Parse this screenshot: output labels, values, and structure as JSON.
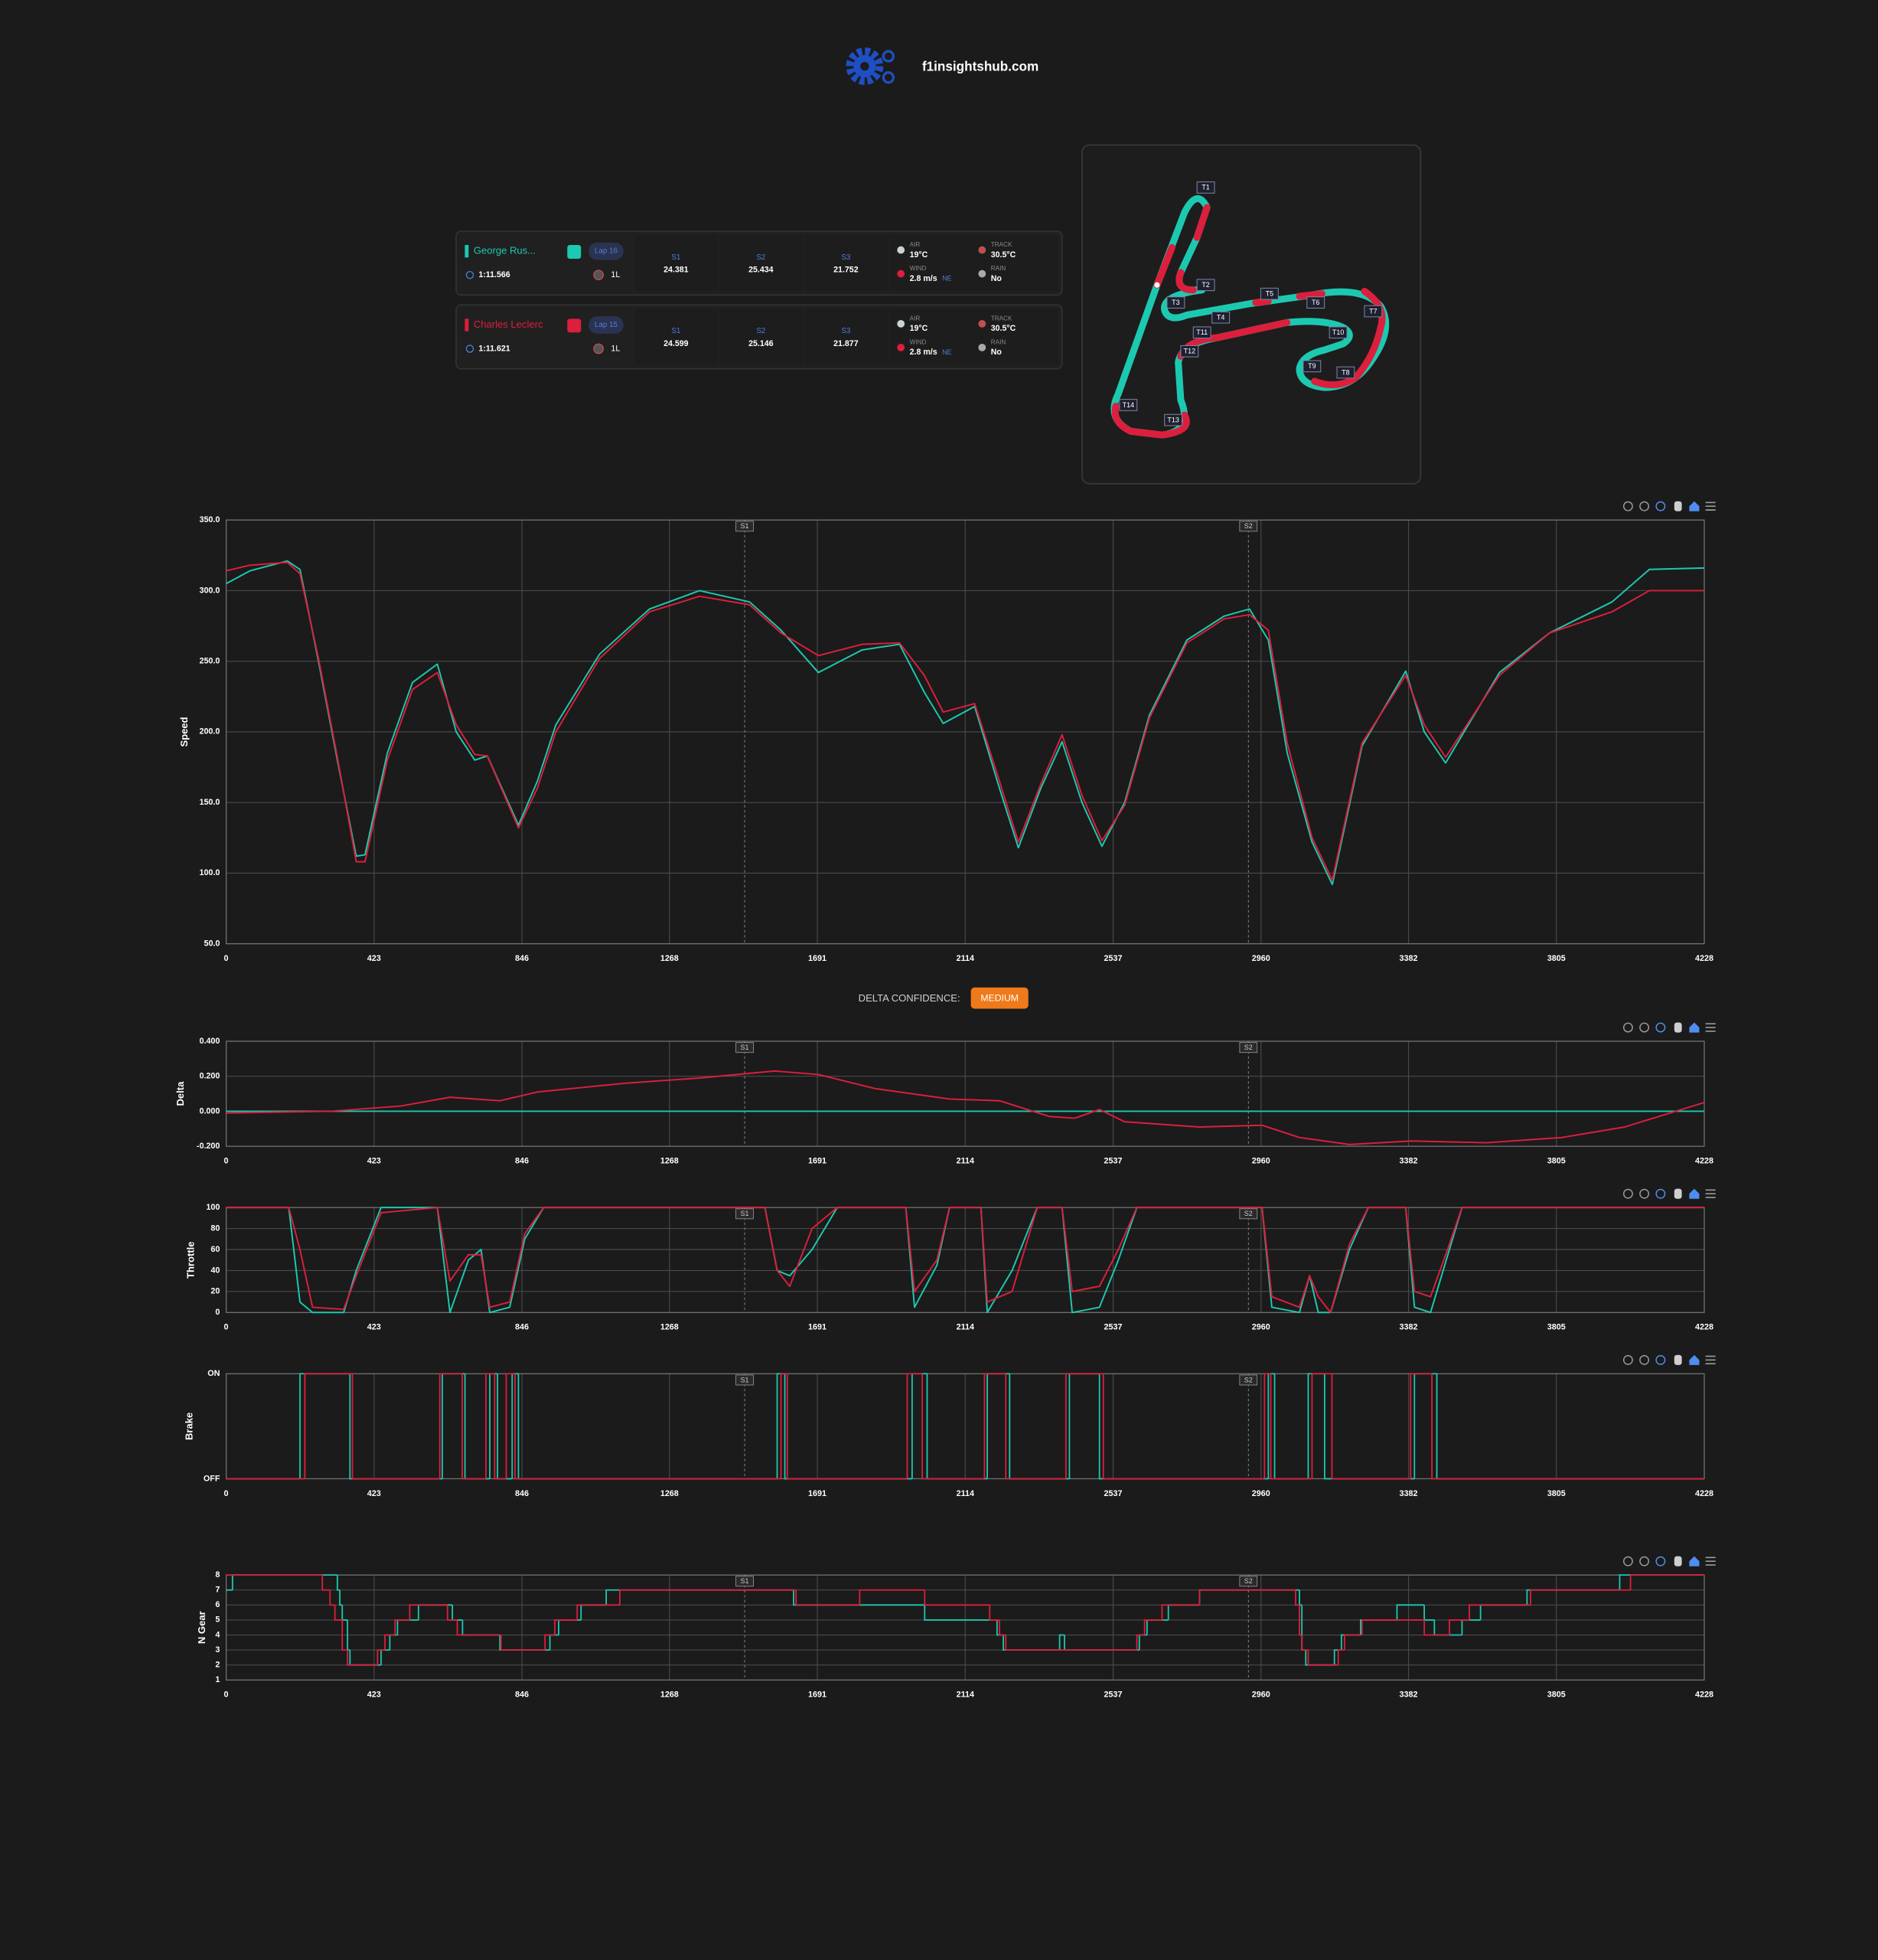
{
  "header": {
    "site": "f1insightshub.com"
  },
  "drivers": [
    {
      "name": "George Rus...",
      "color": "#1cc9b0",
      "lap": "Lap 16",
      "lap_time": "1:11.566",
      "tyre": "1L",
      "sectors": [
        {
          "label": "S1",
          "time": 24.381
        },
        {
          "label": "S2",
          "time": 25.434
        },
        {
          "label": "S3",
          "time": 21.752
        }
      ],
      "weather": [
        {
          "label": "AIR",
          "value": "19°C"
        },
        {
          "label": "TRACK",
          "value": "30.5°C"
        },
        {
          "label": "WIND",
          "value": "2.8 m/s",
          "direction": "NE"
        },
        {
          "label": "RAIN",
          "value": "No"
        }
      ]
    },
    {
      "name": "Charles Leclerc",
      "color": "#dc1f3c",
      "lap": "Lap 15",
      "lap_time": "1:11.621",
      "tyre": "1L",
      "sectors": [
        {
          "label": "S1",
          "time": 24.599
        },
        {
          "label": "S2",
          "time": 25.146
        },
        {
          "label": "S3",
          "time": 21.877
        }
      ],
      "weather": [
        {
          "label": "AIR",
          "value": "19°C"
        },
        {
          "label": "TRACK",
          "value": "30.5°C"
        },
        {
          "label": "WIND",
          "value": "2.8 m/s",
          "direction": "NE"
        },
        {
          "label": "RAIN",
          "value": "No"
        }
      ]
    }
  ],
  "track_map": {
    "corners": [
      "T1",
      "T2",
      "T3",
      "T4",
      "T5",
      "T6",
      "T7",
      "T8",
      "T9",
      "T10",
      "T11",
      "T12",
      "T13",
      "T14"
    ]
  },
  "delta_confidence": {
    "label": "DELTA CONFIDENCE:",
    "level": "MEDIUM"
  },
  "chart_data": [
    {
      "type": "line",
      "ylabel": "Speed",
      "x": [
        0,
        68,
        175,
        211,
        264,
        318,
        372,
        397,
        461,
        533,
        604,
        658,
        711,
        747,
        836,
        890,
        943,
        1068,
        1211,
        1354,
        1497,
        1587,
        1694,
        1819,
        1926,
        1997,
        2051,
        2141,
        2212,
        2266,
        2330,
        2391,
        2448,
        2505,
        2570,
        2641,
        2748,
        2855,
        2927,
        2981,
        3035,
        3106,
        3164,
        3249,
        3374,
        3427,
        3488,
        3642,
        3785,
        3964,
        4071,
        4228
      ],
      "series": [
        {
          "color": "#1cc9b0",
          "values": [
            305,
            314,
            321,
            315,
            250,
            180,
            112,
            113,
            185,
            235,
            248,
            200,
            180,
            183,
            134,
            165,
            205,
            255,
            287,
            300,
            292,
            272,
            242,
            258,
            262,
            228,
            206,
            218,
            160,
            118,
            160,
            193,
            150,
            119,
            150,
            212,
            265,
            282,
            287,
            265,
            185,
            122,
            92,
            190,
            243,
            200,
            178,
            242,
            270,
            292,
            315,
            316
          ]
        },
        {
          "color": "#dc1f3c",
          "values": [
            314,
            318,
            320,
            312,
            252,
            182,
            108,
            108,
            180,
            230,
            242,
            205,
            184,
            183,
            132,
            160,
            200,
            252,
            285,
            296,
            290,
            270,
            254,
            262,
            263,
            240,
            214,
            220,
            165,
            122,
            163,
            198,
            155,
            123,
            148,
            210,
            263,
            280,
            283,
            272,
            192,
            125,
            95,
            192,
            240,
            205,
            182,
            240,
            270,
            285,
            300,
            300
          ]
        }
      ],
      "xlim": [
        0,
        4228
      ],
      "ylim": [
        50,
        350
      ],
      "xticks": [
        0,
        423,
        846,
        1268,
        1691,
        2114,
        2537,
        2960,
        3382,
        3805,
        4228
      ],
      "yticks": [
        {
          "value": 50,
          "label": "50.0"
        },
        {
          "value": 100,
          "label": "100.0"
        },
        {
          "value": 150,
          "label": "150.0"
        },
        {
          "value": 200,
          "label": "200.0"
        },
        {
          "value": 250,
          "label": "250.0"
        },
        {
          "value": 300,
          "label": "300.0"
        },
        {
          "value": 350,
          "label": "350.0"
        }
      ],
      "grid": true,
      "sectors": [
        {
          "label": "S1",
          "x": 1483
        },
        {
          "label": "S2",
          "x": 2924
        }
      ]
    },
    {
      "type": "line",
      "ylabel": "Delta",
      "x": [
        0,
        300,
        500,
        640,
        783,
        890,
        1140,
        1354,
        1568,
        1694,
        1855,
        2069,
        2212,
        2355,
        2427,
        2498,
        2570,
        2784,
        2963,
        3070,
        3213,
        3391,
        3606,
        3821,
        4000,
        4228
      ],
      "series": [
        {
          "color": "#1cc9b0",
          "values": [
            0,
            0,
            0,
            0,
            0,
            0,
            0,
            0,
            0,
            0,
            0,
            0,
            0,
            0,
            0,
            0,
            0,
            0,
            0,
            0,
            0,
            0,
            0,
            0,
            0,
            0
          ]
        },
        {
          "color": "#dc1f3c",
          "values": [
            -0.01,
            0,
            0.03,
            0.08,
            0.06,
            0.11,
            0.16,
            0.19,
            0.23,
            0.21,
            0.13,
            0.07,
            0.06,
            -0.03,
            -0.04,
            0.01,
            -0.06,
            -0.09,
            -0.08,
            -0.15,
            -0.19,
            -0.17,
            -0.18,
            -0.15,
            -0.09,
            0.05
          ]
        }
      ],
      "xlim": [
        0,
        4228
      ],
      "ylim": [
        -0.2,
        0.4
      ],
      "xticks": [
        0,
        423,
        846,
        1268,
        1691,
        2114,
        2537,
        2960,
        3382,
        3805,
        4228
      ],
      "yticks": [
        {
          "value": -0.2,
          "label": "-0.200"
        },
        {
          "value": 0,
          "label": "0.000"
        },
        {
          "value": 0.2,
          "label": "0.200"
        },
        {
          "value": 0.4,
          "label": "0.400"
        }
      ],
      "grid": true,
      "sectors": [
        {
          "label": "S1",
          "x": 1483
        },
        {
          "label": "S2",
          "x": 2924
        }
      ]
    },
    {
      "type": "line",
      "ylabel": "Throttle",
      "x": [
        0,
        179,
        211,
        247,
        336,
        372,
        443,
        604,
        640,
        693,
        729,
        754,
        811,
        854,
        908,
        1541,
        1576,
        1612,
        1676,
        1748,
        1944,
        1969,
        2033,
        2069,
        2159,
        2177,
        2248,
        2320,
        2391,
        2420,
        2498,
        2552,
        2605,
        2963,
        2991,
        3070,
        3099,
        3124,
        3159,
        3213,
        3267,
        3374,
        3399,
        3445,
        3499,
        3535,
        4228
      ],
      "series": [
        {
          "color": "#1cc9b0",
          "values": [
            100,
            100,
            10,
            0,
            0,
            40,
            100,
            100,
            0,
            50,
            60,
            0,
            5,
            70,
            100,
            100,
            40,
            35,
            60,
            100,
            100,
            5,
            45,
            100,
            100,
            0,
            40,
            100,
            100,
            0,
            5,
            50,
            100,
            100,
            5,
            0,
            35,
            0,
            0,
            60,
            100,
            100,
            5,
            0,
            60,
            100,
            100
          ]
        },
        {
          "color": "#dc1f3c",
          "values": [
            100,
            100,
            60,
            5,
            3,
            35,
            95,
            100,
            30,
            55,
            55,
            5,
            10,
            75,
            100,
            100,
            40,
            25,
            80,
            100,
            100,
            20,
            50,
            100,
            100,
            10,
            20,
            100,
            100,
            20,
            25,
            60,
            100,
            100,
            15,
            5,
            35,
            15,
            0,
            65,
            100,
            100,
            20,
            15,
            65,
            100,
            100
          ]
        }
      ],
      "xlim": [
        0,
        4228
      ],
      "ylim": [
        0,
        100
      ],
      "xticks": [
        0,
        423,
        846,
        1268,
        1691,
        2114,
        2537,
        2960,
        3382,
        3805,
        4228
      ],
      "yticks": [
        0,
        20,
        40,
        60,
        80,
        100
      ],
      "grid": true,
      "sectors": [
        {
          "label": "S1",
          "x": 1483
        },
        {
          "label": "S2",
          "x": 2924
        }
      ]
    },
    {
      "type": "step",
      "ylabel": "Brake",
      "series": [
        {
          "color": "#1cc9b0",
          "x": [
            0,
            211,
            354,
            618,
            683,
            754,
            776,
            818,
            836,
            1576,
            1598,
            1962,
            2005,
            2177,
            2241,
            2412,
            2498,
            2981,
            2999,
            3095,
            3142,
            3399,
            3463,
            4228
          ],
          "values": [
            0,
            1,
            0,
            1,
            0,
            1,
            0,
            1,
            0,
            1,
            0,
            1,
            0,
            1,
            0,
            1,
            0,
            1,
            0,
            1,
            0,
            1,
            0,
            0
          ]
        },
        {
          "color": "#dc1f3c",
          "x": [
            0,
            225,
            361,
            611,
            675,
            743,
            768,
            801,
            826,
            1587,
            1605,
            1948,
            1991,
            2169,
            2230,
            2402,
            2509,
            2970,
            2988,
            3106,
            3163,
            3388,
            3449,
            4228
          ],
          "values": [
            0,
            1,
            0,
            1,
            0,
            1,
            0,
            1,
            0,
            1,
            0,
            1,
            0,
            1,
            0,
            1,
            0,
            1,
            0,
            1,
            0,
            1,
            0,
            0
          ]
        }
      ],
      "xlim": [
        0,
        4228
      ],
      "ylim": [
        0,
        1
      ],
      "xticks": [
        0,
        423,
        846,
        1268,
        1691,
        2114,
        2537,
        2960,
        3382,
        3805,
        4228
      ],
      "yticks": [
        {
          "value": 0,
          "label": "OFF"
        },
        {
          "value": 1,
          "label": "ON"
        }
      ],
      "grid": true,
      "sectors": [
        {
          "label": "S1",
          "x": 1483
        },
        {
          "label": "S2",
          "x": 2924
        }
      ]
    },
    {
      "type": "step",
      "ylabel": "N Gear",
      "series": [
        {
          "color": "#1cc9b0",
          "x": [
            0,
            18,
            318,
            325,
            332,
            347,
            354,
            443,
            468,
            490,
            550,
            647,
            676,
            783,
            926,
            951,
            1015,
            1087,
            1623,
            1998,
            2205,
            2223,
            2384,
            2398,
            2612,
            2634,
            2695,
            2784,
            3070,
            3077,
            3088,
            3170,
            3190,
            3245,
            3349,
            3427,
            3456,
            3535,
            3588,
            3721,
            3986,
            4228
          ],
          "values": [
            7,
            8,
            7,
            6,
            5,
            3,
            2,
            3,
            4,
            5,
            6,
            5,
            4,
            3,
            4,
            5,
            6,
            7,
            6,
            5,
            4,
            3,
            4,
            3,
            4,
            5,
            6,
            7,
            6,
            3,
            2,
            3,
            4,
            5,
            6,
            5,
            4,
            5,
            6,
            7,
            8,
            8
          ]
        },
        {
          "color": "#dc1f3c",
          "x": [
            0,
            275,
            297,
            311,
            332,
            347,
            433,
            454,
            483,
            525,
            633,
            661,
            786,
            912,
            940,
            1004,
            1126,
            1630,
            1812,
            1998,
            2184,
            2212,
            2230,
            2605,
            2627,
            2677,
            2784,
            3059,
            3070,
            3077,
            3095,
            3181,
            3199,
            3249,
            3427,
            3499,
            3556,
            3731,
            4017,
            4228
          ],
          "values": [
            8,
            7,
            6,
            5,
            3,
            2,
            3,
            4,
            5,
            6,
            5,
            4,
            3,
            4,
            5,
            6,
            7,
            6,
            7,
            6,
            5,
            4,
            3,
            4,
            5,
            6,
            7,
            6,
            4,
            3,
            2,
            3,
            4,
            5,
            4,
            5,
            6,
            7,
            8,
            8
          ]
        }
      ],
      "xlim": [
        0,
        4228
      ],
      "ylim": [
        1,
        8
      ],
      "xticks": [
        0,
        423,
        846,
        1268,
        1691,
        2114,
        2537,
        2960,
        3382,
        3805,
        4228
      ],
      "yticks": [
        1,
        2,
        3,
        4,
        5,
        6,
        7,
        8
      ],
      "grid": true,
      "sectors": [
        {
          "label": "S1",
          "x": 1483
        },
        {
          "label": "S2",
          "x": 2924
        }
      ]
    }
  ]
}
